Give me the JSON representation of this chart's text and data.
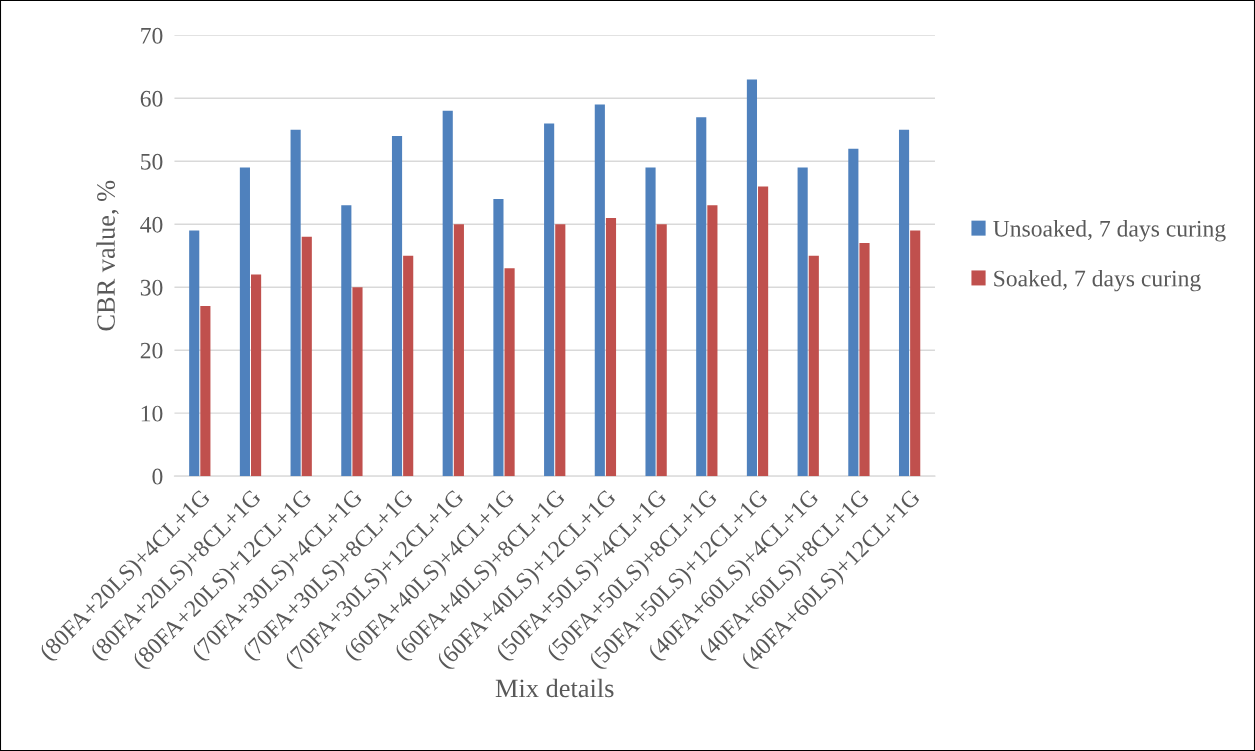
{
  "chart_data": {
    "type": "bar",
    "xlabel": "Mix details",
    "ylabel": "CBR value, %",
    "categories": [
      "(80FA+20LS)+4CL+1G",
      "(80FA+20LS)+8CL+1G",
      "(80FA+20LS)+12CL+1G",
      "(70FA+30LS)+4CL+1G",
      "(70FA+30LS)+8CL+1G",
      "(70FA+30LS)+12CL+1G",
      "(60FA+40LS)+4CL+1G",
      "(60FA+40LS)+8CL+1G",
      "(60FA+40LS)+12CL+1G",
      "(50FA+50LS)+4CL+1G",
      "(50FA+50LS)+8CL+1G",
      "(50FA+50LS)+12CL+1G",
      "(40FA+60LS)+4CL+1G",
      "(40FA+60LS)+8CL+1G",
      "(40FA+60LS)+12CL+1G"
    ],
    "series": [
      {
        "name": "Unsoaked, 7 days curing",
        "color": "#4f81bd",
        "values": [
          39,
          49,
          55,
          43,
          54,
          58,
          44,
          56,
          59,
          49,
          57,
          63,
          49,
          52,
          55
        ]
      },
      {
        "name": "Soaked, 7 days curing",
        "color": "#c0504d",
        "values": [
          27,
          32,
          38,
          30,
          35,
          40,
          33,
          40,
          41,
          40,
          43,
          46,
          35,
          37,
          39
        ]
      }
    ],
    "ylim": [
      0,
      70
    ],
    "yticks": [
      0,
      10,
      20,
      30,
      40,
      50,
      60,
      70
    ],
    "grid": "y",
    "legend": "right"
  }
}
